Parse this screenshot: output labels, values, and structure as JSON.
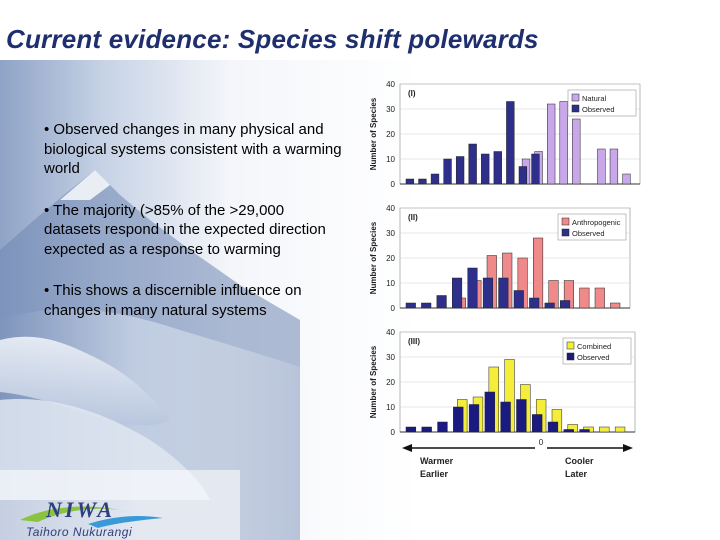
{
  "slide": {
    "title": "Current evidence: Species shift polewards",
    "bullets": [
      "• Observed changes in many physical and biological systems consistent with a warming world",
      "•  The majority (>85% of the >29,000 datasets respond in the expected direction expected as a response to warming",
      "• This shows a discernible influence on changes in many natural systems"
    ],
    "logo_text": "NIWA",
    "logo_subtitle": "Taihoro Nukurangi"
  },
  "colors": {
    "title": "#1f2f6e",
    "natural": "#c9a8ea",
    "anthropogenic": "#f08a8a",
    "combined": "#f4ee3a",
    "observed_top": "#2d2f8a",
    "observed_bottom": "#1a1a80"
  },
  "chart_data": [
    {
      "type": "bar",
      "panel_label": "(I)",
      "ylabel": "Number of Species",
      "y_ticks": [
        "0",
        "10",
        "20",
        "30",
        "40"
      ],
      "ylim": [
        0,
        40
      ],
      "legend_position": "top-right",
      "series": [
        {
          "name": "Natural",
          "color": "#c9a8ea",
          "values": [
            0,
            0,
            0,
            0,
            0,
            0,
            0,
            0,
            0,
            10,
            13,
            32,
            33,
            26,
            0,
            14,
            14,
            4
          ]
        },
        {
          "name": "Observed",
          "color": "#2d2f8a",
          "values": [
            2,
            2,
            4,
            10,
            11,
            16,
            12,
            13,
            33,
            7,
            12,
            0,
            0,
            0,
            0,
            0,
            0,
            0
          ]
        }
      ]
    },
    {
      "type": "bar",
      "panel_label": "(II)",
      "ylabel": "Number of Species",
      "y_ticks": [
        "0",
        "10",
        "20",
        "30",
        "40"
      ],
      "ylim": [
        0,
        40
      ],
      "legend_position": "top-right",
      "series": [
        {
          "name": "Anthropogenic",
          "color": "#f08a8a",
          "values": [
            0,
            0,
            0,
            4,
            11,
            21,
            22,
            20,
            28,
            11,
            11,
            8,
            8,
            2
          ]
        },
        {
          "name": "Observed",
          "color": "#2d2f8a",
          "values": [
            2,
            2,
            5,
            12,
            16,
            12,
            12,
            7,
            4,
            2,
            3,
            0,
            0,
            0
          ]
        }
      ]
    },
    {
      "type": "bar",
      "panel_label": "(III)",
      "ylabel": "Number of Species",
      "y_ticks": [
        "0",
        "10",
        "20",
        "30",
        "40"
      ],
      "ylim": [
        0,
        40
      ],
      "legend_position": "top-right",
      "series": [
        {
          "name": "Combined",
          "color": "#f4ee3a",
          "values": [
            0,
            0,
            0,
            13,
            14,
            26,
            29,
            19,
            13,
            9,
            3,
            2,
            2,
            2
          ]
        },
        {
          "name": "Observed",
          "color": "#1a1a80",
          "values": [
            2,
            2,
            4,
            10,
            11,
            16,
            12,
            13,
            7,
            4,
            1,
            1,
            0,
            0
          ]
        }
      ],
      "x_axis_zero": "0",
      "x_left_label": [
        "Warmer",
        "Earlier"
      ],
      "x_right_label": [
        "Cooler",
        "Later"
      ]
    }
  ]
}
